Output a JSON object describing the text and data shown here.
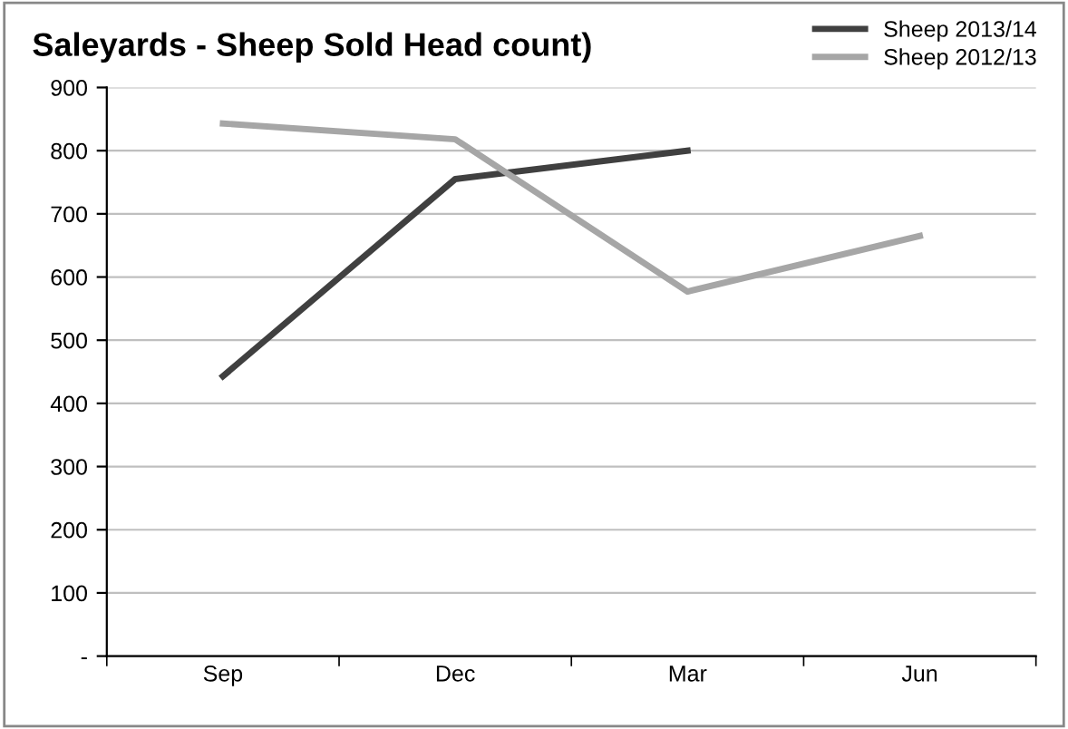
{
  "chart_data": {
    "type": "line",
    "title": "Saleyards - Sheep Sold Head count)",
    "categories": [
      "Sep",
      "Dec",
      "Mar",
      "Jun"
    ],
    "series": [
      {
        "name": "Sheep 2013/14",
        "color": "#404040",
        "values": [
          443,
          755,
          800,
          null
        ]
      },
      {
        "name": "Sheep 2012/13",
        "color": "#a6a6a6",
        "values": [
          843,
          818,
          577,
          665
        ]
      }
    ],
    "ylim": [
      0,
      900
    ],
    "yticks": [
      {
        "value": 0,
        "label": "-"
      },
      100,
      200,
      300,
      400,
      500,
      600,
      700,
      800,
      900
    ],
    "grid": "y",
    "legend": "top right",
    "marker": "none",
    "line_style": "solid"
  }
}
